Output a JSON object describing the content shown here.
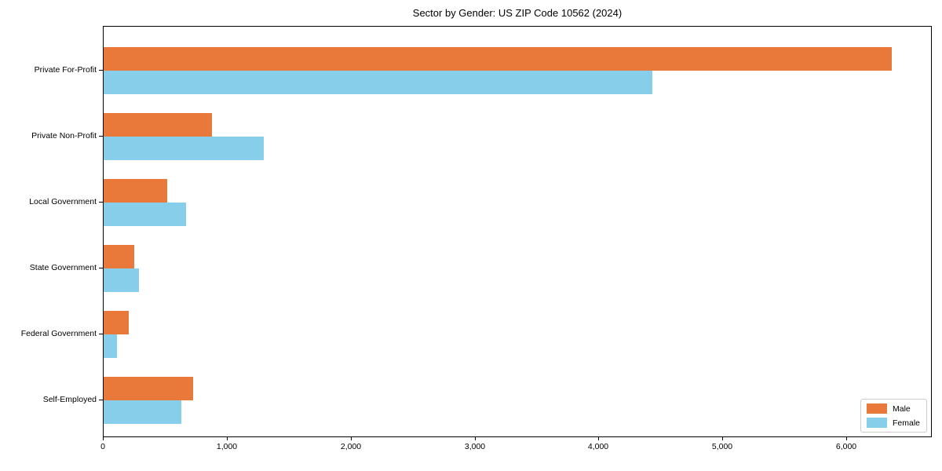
{
  "chart_data": {
    "type": "bar",
    "orientation": "horizontal",
    "title": "Sector by Gender: US ZIP Code 10562 (2024)",
    "categories": [
      "Private For-Profit",
      "Private Non-Profit",
      "Local Government",
      "State Government",
      "Federal Government",
      "Self-Employed"
    ],
    "series": [
      {
        "name": "Male",
        "color": "#e8793a",
        "values": [
          6360,
          875,
          515,
          245,
          200,
          720
        ]
      },
      {
        "name": "Female",
        "color": "#87ceeb",
        "values": [
          4430,
          1290,
          665,
          285,
          110,
          625
        ]
      }
    ],
    "xlim": [
      0,
      6690
    ],
    "xticks": [
      0,
      1000,
      2000,
      3000,
      4000,
      5000,
      6000
    ],
    "xtick_labels": [
      "0",
      "1,000",
      "2,000",
      "3,000",
      "4,000",
      "5,000",
      "6,000"
    ],
    "ylabel": "",
    "xlabel": "",
    "grid": false,
    "legend": {
      "position": "lower right",
      "entries": [
        "Male",
        "Female"
      ]
    }
  }
}
